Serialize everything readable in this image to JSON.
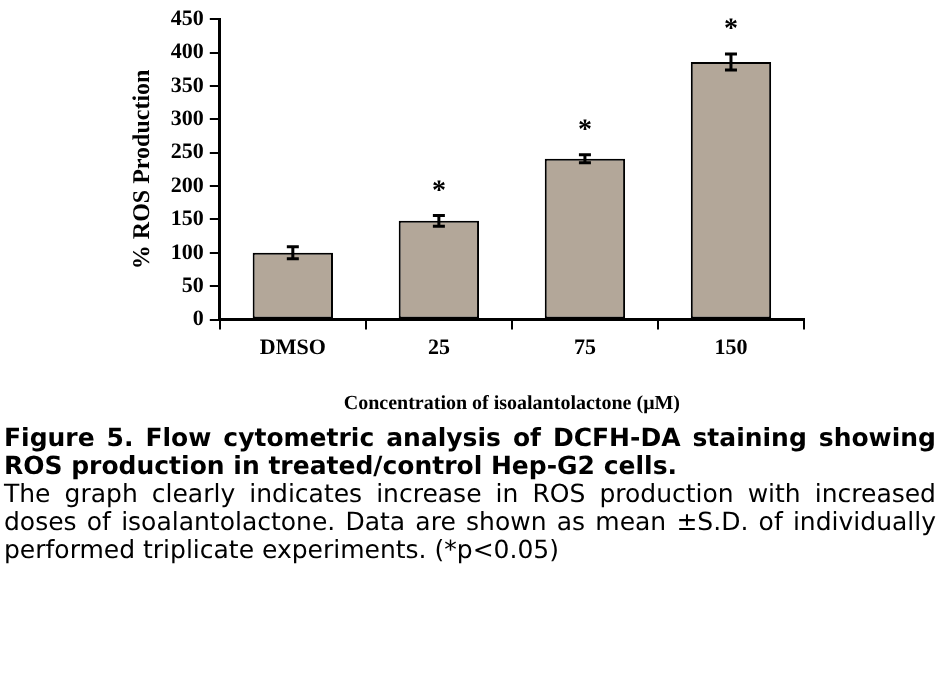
{
  "chart_data": {
    "type": "bar",
    "title": "Figure 5. Flow cytometric analysis of DCFH-DA staining showing ROS production in treated/control Hep-G2 cells.",
    "xlabel": "Concentration of isoalantolactone (μM)",
    "ylabel": "% ROS Production",
    "categories": [
      "DMSO",
      "25",
      "75",
      "150"
    ],
    "values": [
      100,
      148,
      241,
      386
    ],
    "errors": [
      9,
      8,
      6,
      12
    ],
    "color": "#b3a799",
    "ylim": [
      0,
      450
    ],
    "yticks": [
      0,
      50,
      100,
      150,
      200,
      250,
      300,
      350,
      400,
      450
    ],
    "grid": false,
    "legend": false,
    "annotations": [
      {
        "text": "*",
        "x": "25",
        "y": 156
      },
      {
        "text": "*",
        "x": "75",
        "y": 247
      },
      {
        "text": "*",
        "x": "150",
        "y": 398
      },
      "The graph clearly indicates increase in ROS production with increased doses of isoalantolactone. Data are shown as mean ±S.D. of individually performed triplicate experiments. (*p<0.05)"
    ]
  }
}
